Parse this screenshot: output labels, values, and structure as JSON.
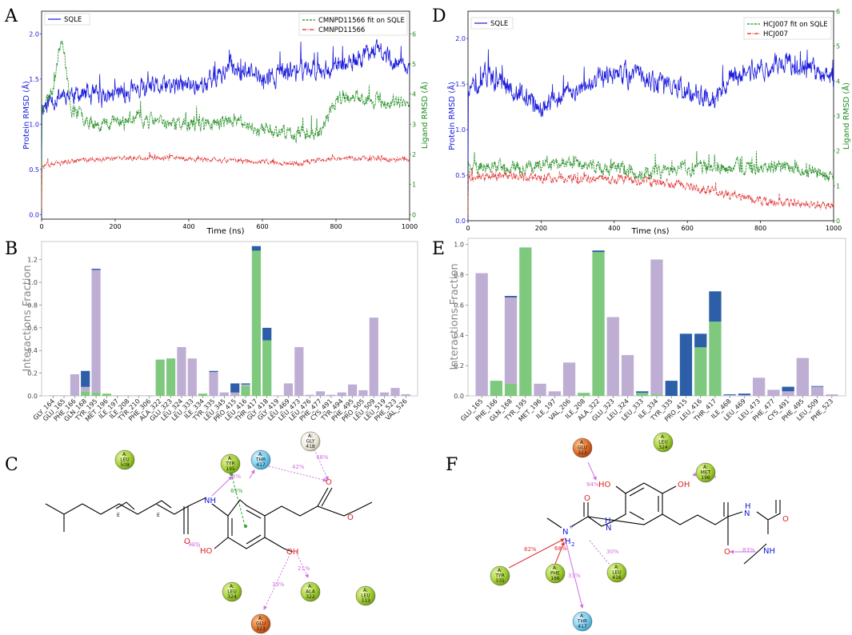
{
  "panel_labels": {
    "A": "A",
    "B": "B",
    "C": "C",
    "D": "D",
    "E": "E",
    "F": "F"
  },
  "colors": {
    "protein": "#1a1adc",
    "ligand_fit": "#1e8c1e",
    "ligand": "#e02020",
    "hbond": "#7fc97f",
    "hydro": "#beaed4",
    "water": "#2c5fa8",
    "axis_green": "#1e8c1e"
  },
  "chart_data": [
    {
      "id": "A",
      "type": "line",
      "xlabel": "Time (ns)",
      "ylabel_left": "Protein RMSD (Å)",
      "ylabel_right": "Ligand RMSD (Å)",
      "xlim": [
        0,
        1000
      ],
      "ylim_left": [
        -0.05,
        2.25
      ],
      "ylim_right": [
        -0.15,
        6.75
      ],
      "xticks": [
        0,
        200,
        400,
        600,
        800,
        1000
      ],
      "yticks_left": [
        "0.0",
        "0.5",
        "1.0",
        "1.5",
        "2.0"
      ],
      "yticks_right": [
        "0",
        "1",
        "2",
        "3",
        "4",
        "5",
        "6"
      ],
      "legend_left": [
        "SQLE"
      ],
      "legend_right": [
        "CMNPD11566 fit on SQLE",
        "CMNPD11566"
      ],
      "series": [
        {
          "name": "SQLE",
          "axis": "left",
          "color": "#1a1adc",
          "seed": 11,
          "base": [
            [
              0,
              1.2
            ],
            [
              60,
              1.35
            ],
            [
              150,
              1.3
            ],
            [
              300,
              1.4
            ],
            [
              450,
              1.45
            ],
            [
              520,
              1.65
            ],
            [
              600,
              1.5
            ],
            [
              700,
              1.6
            ],
            [
              850,
              1.65
            ],
            [
              900,
              1.85
            ],
            [
              1000,
              1.6
            ]
          ],
          "amp": 0.12,
          "start": 0.6
        },
        {
          "name": "CMNPD11566 fit on SQLE",
          "axis": "right",
          "dash": true,
          "color": "#1e8c1e",
          "seed": 23,
          "base": [
            [
              0,
              3.5
            ],
            [
              30,
              4.2
            ],
            [
              55,
              6.0
            ],
            [
              80,
              3.5
            ],
            [
              150,
              3.0
            ],
            [
              260,
              3.2
            ],
            [
              350,
              3.0
            ],
            [
              450,
              3.0
            ],
            [
              520,
              3.1
            ],
            [
              600,
              2.8
            ],
            [
              700,
              2.7
            ],
            [
              760,
              2.8
            ],
            [
              800,
              3.8
            ],
            [
              850,
              3.9
            ],
            [
              1000,
              3.6
            ]
          ],
          "amp": 0.25,
          "start": 0.2
        },
        {
          "name": "CMNPD11566",
          "axis": "right",
          "dash": true,
          "color": "#e02020",
          "seed": 37,
          "base": [
            [
              0,
              1.6
            ],
            [
              100,
              1.8
            ],
            [
              300,
              1.9
            ],
            [
              500,
              1.8
            ],
            [
              700,
              1.7
            ],
            [
              800,
              1.9
            ],
            [
              1000,
              1.8
            ]
          ],
          "amp": 0.09,
          "start": 0.2
        }
      ]
    },
    {
      "id": "D",
      "type": "line",
      "xlabel": "Time (ns)",
      "ylabel_left": "Protein RMSD (Å)",
      "ylabel_right": "Ligand RMSD (Å)",
      "xlim": [
        0,
        1000
      ],
      "ylim_left": [
        0,
        2.3
      ],
      "ylim_right": [
        0,
        6.0
      ],
      "xticks": [
        0,
        200,
        400,
        600,
        800,
        1000
      ],
      "yticks_left": [
        "0.0",
        "0.5",
        "1.0",
        "1.5",
        "2.0"
      ],
      "yticks_right": [
        "0",
        "1",
        "2",
        "3",
        "4",
        "5",
        "6"
      ],
      "legend_left": [
        "SQLE"
      ],
      "legend_right": [
        "HCJ007 fit on SQLE",
        "HCJ007"
      ],
      "series": [
        {
          "name": "SQLE",
          "axis": "left",
          "color": "#1a1adc",
          "seed": 51,
          "base": [
            [
              0,
              1.4
            ],
            [
              50,
              1.6
            ],
            [
              100,
              1.5
            ],
            [
              200,
              1.25
            ],
            [
              300,
              1.45
            ],
            [
              400,
              1.6
            ],
            [
              500,
              1.55
            ],
            [
              600,
              1.45
            ],
            [
              680,
              1.3
            ],
            [
              720,
              1.6
            ],
            [
              800,
              1.65
            ],
            [
              880,
              1.75
            ],
            [
              1000,
              1.55
            ]
          ],
          "amp": 0.13,
          "start": 0.3
        },
        {
          "name": "HCJ007 fit on SQLE",
          "axis": "right",
          "dash": true,
          "color": "#1e8c1e",
          "seed": 63,
          "base": [
            [
              0,
              1.6
            ],
            [
              100,
              1.5
            ],
            [
              250,
              1.7
            ],
            [
              400,
              1.5
            ],
            [
              500,
              1.4
            ],
            [
              600,
              1.5
            ],
            [
              700,
              1.5
            ],
            [
              850,
              1.6
            ],
            [
              1000,
              1.3
            ]
          ],
          "amp": 0.22,
          "start": 0.4
        },
        {
          "name": "HCJ007",
          "axis": "right",
          "dash": true,
          "color": "#e02020",
          "seed": 77,
          "base": [
            [
              0,
              1.2
            ],
            [
              100,
              1.3
            ],
            [
              200,
              1.2
            ],
            [
              400,
              1.2
            ],
            [
              600,
              1.0
            ],
            [
              700,
              0.8
            ],
            [
              800,
              0.55
            ],
            [
              1000,
              0.45
            ]
          ],
          "amp": 0.14,
          "start": 0.2
        }
      ]
    },
    {
      "id": "B",
      "type": "bar",
      "stacked": true,
      "ylabel": "Interactions Fraction",
      "ylim": [
        0,
        1.36
      ],
      "yticks": [
        "0.0",
        "0.2",
        "0.4",
        "0.6",
        "0.8",
        "1.0",
        "1.2"
      ],
      "categories": [
        "GLY_164",
        "GLU_165",
        "PHE_166",
        "GLN_168",
        "TYR_195",
        "MET_196",
        "ILE_197",
        "ILE_208",
        "TYR_210",
        "PHE_306",
        "ALA_322",
        "GLU_323",
        "LEU_324",
        "LEU_333",
        "ILE_334",
        "TYR_335",
        "LEU_345",
        "PRO_415",
        "LEU_416",
        "THR_417",
        "GLY_418",
        "GLY_419",
        "LEU_469",
        "LEU_473",
        "LEU_476",
        "PHE_477",
        "CYS_491",
        "TYR_494",
        "PHE_495",
        "PRO_505",
        "LEU_509",
        "LEU_519",
        "PHE_523",
        "VAL_526"
      ],
      "series": [
        {
          "name": "H-bonds",
          "color": "#7fc97f",
          "values": [
            0,
            0,
            0,
            0.04,
            0.03,
            0.02,
            0,
            0,
            0,
            0,
            0.32,
            0.33,
            0,
            0,
            0.02,
            0,
            0,
            0,
            0.09,
            1.28,
            0.49,
            0,
            0,
            0,
            0,
            0,
            0,
            0,
            0,
            0,
            0,
            0,
            0,
            0
          ]
        },
        {
          "name": "Hydrophobic",
          "color": "#beaed4",
          "values": [
            0.005,
            0.005,
            0.19,
            0.04,
            1.08,
            0,
            0.005,
            0.005,
            0.005,
            0.005,
            0,
            0,
            0.43,
            0.33,
            0,
            0.21,
            0.03,
            0.03,
            0.01,
            0,
            0,
            0.005,
            0.11,
            0.43,
            0.01,
            0.04,
            0.01,
            0.03,
            0.1,
            0.05,
            0.69,
            0.03,
            0.07,
            0.015
          ]
        },
        {
          "name": "Water bridges",
          "color": "#2c5fa8",
          "values": [
            0,
            0,
            0,
            0.14,
            0.01,
            0,
            0,
            0,
            0,
            0,
            0,
            0,
            0,
            0,
            0,
            0.01,
            0,
            0.08,
            0.01,
            0.04,
            0.11,
            0,
            0,
            0,
            0,
            0,
            0,
            0,
            0,
            0,
            0,
            0,
            0,
            0
          ]
        }
      ]
    },
    {
      "id": "E",
      "type": "bar",
      "stacked": true,
      "ylabel": "Interactions Fraction",
      "ylim": [
        0,
        1.04
      ],
      "yticks": [
        "0.0",
        "0.2",
        "0.4",
        "0.6",
        "0.8",
        "1.0"
      ],
      "categories": [
        "GLU_165",
        "PHE_166",
        "GLN_168",
        "TYR_195",
        "MET_196",
        "ILE_197",
        "VAL_206",
        "ILE_208",
        "ALA_322",
        "GLU_323",
        "LEU_324",
        "LEU_333",
        "ILE_334",
        "TYR_335",
        "PRO_415",
        "LEU_416",
        "THR_417",
        "ILE_468",
        "LEU_469",
        "LEU_473",
        "PHE_477",
        "CYS_491",
        "PHE_495",
        "LEU_509",
        "PHE_523"
      ],
      "series": [
        {
          "name": "H-bonds",
          "color": "#7fc97f",
          "values": [
            0,
            0.1,
            0.08,
            0.98,
            0,
            0,
            0,
            0.02,
            0.95,
            0,
            0,
            0.02,
            0.01,
            0,
            0,
            0.32,
            0.49,
            0,
            0,
            0,
            0,
            0,
            0,
            0,
            0
          ]
        },
        {
          "name": "Hydrophobic",
          "color": "#beaed4",
          "values": [
            0.81,
            0,
            0.57,
            0,
            0.08,
            0.03,
            0.22,
            0,
            0,
            0.52,
            0.27,
            0,
            0.89,
            0,
            0,
            0,
            0,
            0.005,
            0.005,
            0.12,
            0.04,
            0.03,
            0.25,
            0.06,
            0.01
          ]
        },
        {
          "name": "Water bridges",
          "color": "#2c5fa8",
          "values": [
            0,
            0,
            0.01,
            0,
            0,
            0,
            0,
            0,
            0.01,
            0,
            0,
            0.01,
            0,
            0.1,
            0.41,
            0.09,
            0.2,
            0.005,
            0.01,
            0,
            0,
            0.03,
            0,
            0.005,
            0
          ]
        }
      ]
    }
  ],
  "diagramC": {
    "bubbles": [
      {
        "key": "leu509",
        "label": "A:\nLEU\n509",
        "kind": "hydro"
      },
      {
        "key": "tyr195",
        "label": "A:\nTYR\n195",
        "kind": "hydro"
      },
      {
        "key": "thr417",
        "label": "A:\nTHR\n417",
        "kind": "polar"
      },
      {
        "key": "gly418",
        "label": "A:\nGLY\n418",
        "kind": "gly"
      },
      {
        "key": "leu324",
        "label": "A:\nLEU\n324",
        "kind": "hydro"
      },
      {
        "key": "ala322",
        "label": "A:\nALA\n322",
        "kind": "hydro"
      },
      {
        "key": "leu333",
        "label": "A:\nLEU\n333",
        "kind": "hydro"
      },
      {
        "key": "glu323",
        "label": "A:\nGLU\n323",
        "kind": "neg"
      }
    ],
    "percents": {
      "p1": "6%",
      "p2": "42%",
      "p3": "48%",
      "p4": "85%",
      "p5": "30%",
      "p6": "21%",
      "p7": "33%"
    },
    "atoms": {
      "nh": "NH",
      "o1": "O",
      "o2": "O",
      "o3": "O",
      "oh1": "HO",
      "oh2": "OH",
      "e1": "E",
      "e2": "E"
    }
  },
  "diagramF": {
    "bubbles": [
      {
        "key": "glu323",
        "label": "A:\nGLU\n323",
        "kind": "neg"
      },
      {
        "key": "leu324",
        "label": "A:\nLEU\n324",
        "kind": "hydro"
      },
      {
        "key": "met196",
        "label": "A:\nMET\n196",
        "kind": "hydro"
      },
      {
        "key": "tyr335",
        "label": "A:\nTYR\n335",
        "kind": "hydro"
      },
      {
        "key": "phe166",
        "label": "A:\nPHE\n166",
        "kind": "hydro"
      },
      {
        "key": "leu416",
        "label": "A:\nLEU\n416",
        "kind": "hydro"
      },
      {
        "key": "thr417",
        "label": "A:\nTHR\n417",
        "kind": "polar"
      }
    ],
    "percents": {
      "p1": "94%",
      "p2": "98%",
      "p3": "82%",
      "p4": "68%",
      "p5": "30%",
      "p6": "83%",
      "p7": "33%"
    },
    "atoms": {
      "ho": "HO",
      "oh": "OH",
      "o1": "O",
      "o2": "O",
      "o3": "O",
      "nplus": "N",
      "plus": "+",
      "h2": "H",
      "two": "2",
      "nh1": "N",
      "h1": "H",
      "nh2": "N",
      "h2b": "H",
      "nh3": "NH",
      "ho2": "H",
      "nh": "NH"
    }
  }
}
